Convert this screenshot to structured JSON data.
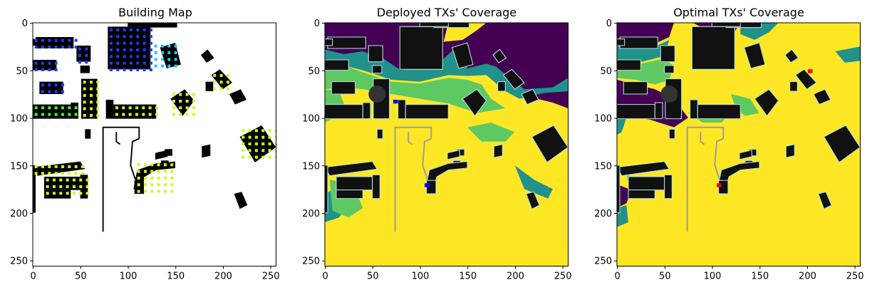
{
  "chart_data": [
    {
      "type": "heatmap",
      "title": "Building Map",
      "xlim": [
        0,
        255
      ],
      "ylim": [
        255,
        0
      ],
      "x_ticks": [
        "0",
        "50",
        "100",
        "150",
        "200",
        "250"
      ],
      "y_ticks": [
        "0",
        "50",
        "100",
        "150",
        "200",
        "250"
      ],
      "legend": "none",
      "grid": false,
      "colors": {
        "background": "#ffffff",
        "building": "#000000",
        "marker_blue": "#1f3bff",
        "marker_cyan": "#20c8ff",
        "marker_green": "#3cff1e",
        "marker_lime": "#c8ff1e"
      }
    },
    {
      "type": "heatmap",
      "title": "Deployed TXs' Coverage",
      "xlim": [
        0,
        255
      ],
      "ylim": [
        255,
        0
      ],
      "x_ticks": [
        "0",
        "50",
        "100",
        "150",
        "200",
        "250"
      ],
      "y_ticks": [
        "0",
        "50",
        "100",
        "150",
        "200",
        "250"
      ],
      "transmitters": [
        {
          "x": 75,
          "y": 83
        },
        {
          "x": 107,
          "y": 171
        }
      ],
      "legend": "none",
      "grid": false,
      "colors": {
        "covered": "#fde725",
        "mid": "#5ec962",
        "low": "#21918c",
        "none": "#440154",
        "building": "#111111",
        "transmitter": "#0000ff"
      }
    },
    {
      "type": "heatmap",
      "title": "Optimal TXs' Coverage",
      "xlim": [
        0,
        255
      ],
      "ylim": [
        255,
        0
      ],
      "x_ticks": [
        "0",
        "50",
        "100",
        "150",
        "200",
        "250"
      ],
      "y_ticks": [
        "0",
        "50",
        "100",
        "150",
        "200",
        "250"
      ],
      "transmitters": [
        {
          "x": 203,
          "y": 51
        },
        {
          "x": 107,
          "y": 171
        }
      ],
      "legend": "none",
      "grid": false,
      "colors": {
        "covered": "#fde725",
        "mid": "#5ec962",
        "low": "#21918c",
        "none": "#440154",
        "building": "#111111",
        "transmitter": "#ff0000"
      }
    }
  ]
}
